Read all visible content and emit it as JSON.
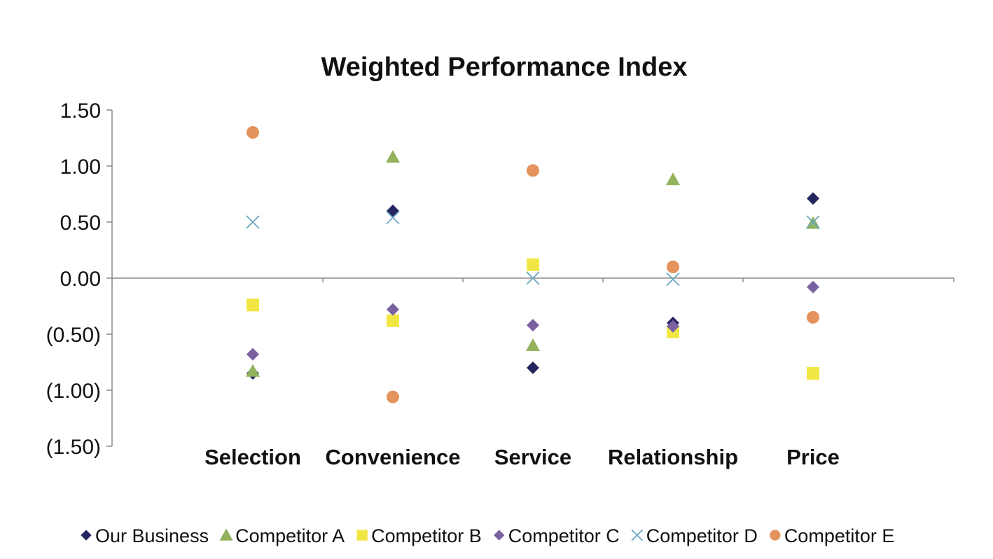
{
  "chart_data": {
    "type": "scatter",
    "title": "Weighted Performance Index",
    "categories": [
      "Selection",
      "Convenience",
      "Service",
      "Relationship",
      "Price"
    ],
    "y_ticks": [
      "1.50",
      "1.00",
      "0.50",
      "0.00",
      "(0.50)",
      "(1.00)",
      "(1.50)"
    ],
    "ylim": [
      -1.5,
      1.5
    ],
    "grid": false,
    "legend_position": "bottom",
    "series": [
      {
        "name": "Our Business",
        "marker": "diamond",
        "color": "#24275e",
        "values": [
          -0.85,
          0.6,
          -0.8,
          -0.4,
          0.71
        ]
      },
      {
        "name": "Competitor A",
        "marker": "triangle",
        "color": "#93b25d",
        "values": [
          -0.83,
          1.08,
          -0.6,
          0.88,
          0.49
        ]
      },
      {
        "name": "Competitor B",
        "marker": "square",
        "color": "#f2e644",
        "values": [
          -0.24,
          -0.38,
          0.12,
          -0.48,
          -0.85
        ]
      },
      {
        "name": "Competitor C",
        "marker": "diamond",
        "color": "#7b61a0",
        "values": [
          -0.68,
          -0.28,
          -0.42,
          -0.43,
          -0.08
        ]
      },
      {
        "name": "Competitor D",
        "marker": "x",
        "color": "#6aa7c2",
        "values": [
          0.5,
          0.54,
          0.0,
          -0.01,
          0.5
        ]
      },
      {
        "name": "Competitor E",
        "marker": "circle",
        "color": "#e3935b",
        "values": [
          1.3,
          -1.06,
          0.96,
          0.1,
          -0.35
        ]
      }
    ]
  }
}
